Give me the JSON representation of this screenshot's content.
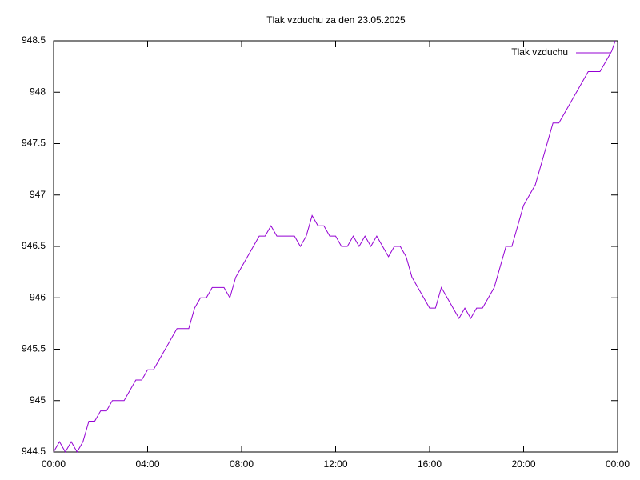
{
  "chart_data": {
    "type": "line",
    "title": "Tlak vzduchu za den 23.05.2025",
    "x": [
      0,
      0.25,
      0.5,
      0.75,
      1,
      1.25,
      1.5,
      1.75,
      2,
      2.25,
      2.5,
      2.75,
      3,
      3.25,
      3.5,
      3.75,
      4,
      4.25,
      4.5,
      4.75,
      5,
      5.25,
      5.5,
      5.75,
      6,
      6.25,
      6.5,
      6.75,
      7,
      7.25,
      7.5,
      7.75,
      8,
      8.25,
      8.5,
      8.75,
      9,
      9.25,
      9.5,
      9.75,
      10,
      10.25,
      10.5,
      10.75,
      11,
      11.25,
      11.5,
      11.75,
      12,
      12.25,
      12.5,
      12.75,
      13,
      13.25,
      13.5,
      13.75,
      14,
      14.25,
      14.5,
      14.75,
      15,
      15.25,
      15.5,
      15.75,
      16,
      16.25,
      16.5,
      16.75,
      17,
      17.25,
      17.5,
      17.75,
      18,
      18.25,
      18.5,
      18.75,
      19,
      19.25,
      19.5,
      19.75,
      20,
      20.25,
      20.5,
      20.75,
      21,
      21.25,
      21.5,
      21.75,
      22,
      22.25,
      22.5,
      22.75,
      23,
      23.25,
      23.5,
      23.75,
      23.9
    ],
    "series": [
      {
        "name": "Tlak vzduchu",
        "color": "#9400d3",
        "values": [
          944.5,
          944.6,
          944.5,
          944.6,
          944.5,
          944.6,
          944.8,
          944.8,
          944.9,
          944.9,
          945.0,
          945.0,
          945.0,
          945.1,
          945.2,
          945.2,
          945.3,
          945.3,
          945.4,
          945.5,
          945.6,
          945.7,
          945.7,
          945.7,
          945.9,
          946.0,
          946.0,
          946.1,
          946.1,
          946.1,
          946.0,
          946.2,
          946.3,
          946.4,
          946.5,
          946.6,
          946.6,
          946.7,
          946.6,
          946.6,
          946.6,
          946.6,
          946.5,
          946.6,
          946.8,
          946.7,
          946.7,
          946.6,
          946.6,
          946.5,
          946.5,
          946.6,
          946.5,
          946.6,
          946.5,
          946.6,
          946.5,
          946.4,
          946.5,
          946.5,
          946.4,
          946.2,
          946.1,
          946.0,
          945.9,
          945.9,
          946.1,
          946.0,
          945.9,
          945.8,
          945.9,
          945.8,
          945.9,
          945.9,
          946.0,
          946.1,
          946.3,
          946.5,
          946.5,
          946.7,
          946.9,
          947.0,
          947.1,
          947.3,
          947.5,
          947.7,
          947.7,
          947.8,
          947.9,
          948.0,
          948.1,
          948.2,
          948.2,
          948.2,
          948.3,
          948.4,
          948.5
        ]
      }
    ],
    "xlim": [
      0,
      24
    ],
    "xticks": [
      {
        "value": 0,
        "label": "00:00"
      },
      {
        "value": 4,
        "label": "04:00"
      },
      {
        "value": 8,
        "label": "08:00"
      },
      {
        "value": 12,
        "label": "12:00"
      },
      {
        "value": 16,
        "label": "16:00"
      },
      {
        "value": 20,
        "label": "20:00"
      },
      {
        "value": 24,
        "label": "00:00"
      }
    ],
    "ylim": [
      944.5,
      948.5
    ],
    "yticks": [
      944.5,
      945,
      945.5,
      946,
      946.5,
      947,
      947.5,
      948,
      948.5
    ],
    "grid": false,
    "legend": "top-right"
  }
}
